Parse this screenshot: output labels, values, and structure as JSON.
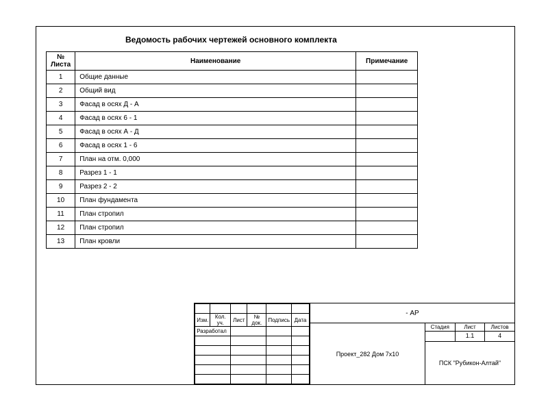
{
  "title": "Ведомость рабочих чертежей основного комплекта",
  "columns": {
    "num": "№\nЛиста",
    "name": "Наименование",
    "note": "Примечание"
  },
  "rows": [
    {
      "num": "1",
      "name": "Общие данные",
      "note": ""
    },
    {
      "num": "2",
      "name": "Общий вид",
      "note": ""
    },
    {
      "num": "3",
      "name": "Фасад в осях Д - А",
      "note": ""
    },
    {
      "num": "4",
      "name": "Фасад в осях 6 - 1",
      "note": ""
    },
    {
      "num": "5",
      "name": "Фасад в осях А - Д",
      "note": ""
    },
    {
      "num": "6",
      "name": "Фасад в осях 1 - 6",
      "note": ""
    },
    {
      "num": "7",
      "name": "План на отм. 0,000",
      "note": ""
    },
    {
      "num": "8",
      "name": "Разрез  1 - 1",
      "note": ""
    },
    {
      "num": "9",
      "name": "Разрез  2 - 2",
      "note": ""
    },
    {
      "num": "10",
      "name": "План фундамента",
      "note": ""
    },
    {
      "num": "11",
      "name": "План стропил",
      "note": ""
    },
    {
      "num": "12",
      "name": "План стропил",
      "note": ""
    },
    {
      "num": "13",
      "name": "План кровли",
      "note": ""
    }
  ],
  "stamp": {
    "rev_headers": {
      "c1": "Изм.",
      "c2": "Кол. уч.",
      "c3": "Лист",
      "c4": "№ док.",
      "c5": "Подпись",
      "c6": "Дата"
    },
    "developer_label": "Разработал",
    "code": "- АР",
    "project": "Проект_282 Дом 7х10",
    "meta_labels": {
      "stage": "Стадия",
      "sheet": "Лист",
      "sheets": "Листов"
    },
    "meta_values": {
      "stage": "",
      "sheet": "1.1",
      "sheets": "4"
    },
    "org": "ПСК \"Рубикон-Алтай\""
  }
}
